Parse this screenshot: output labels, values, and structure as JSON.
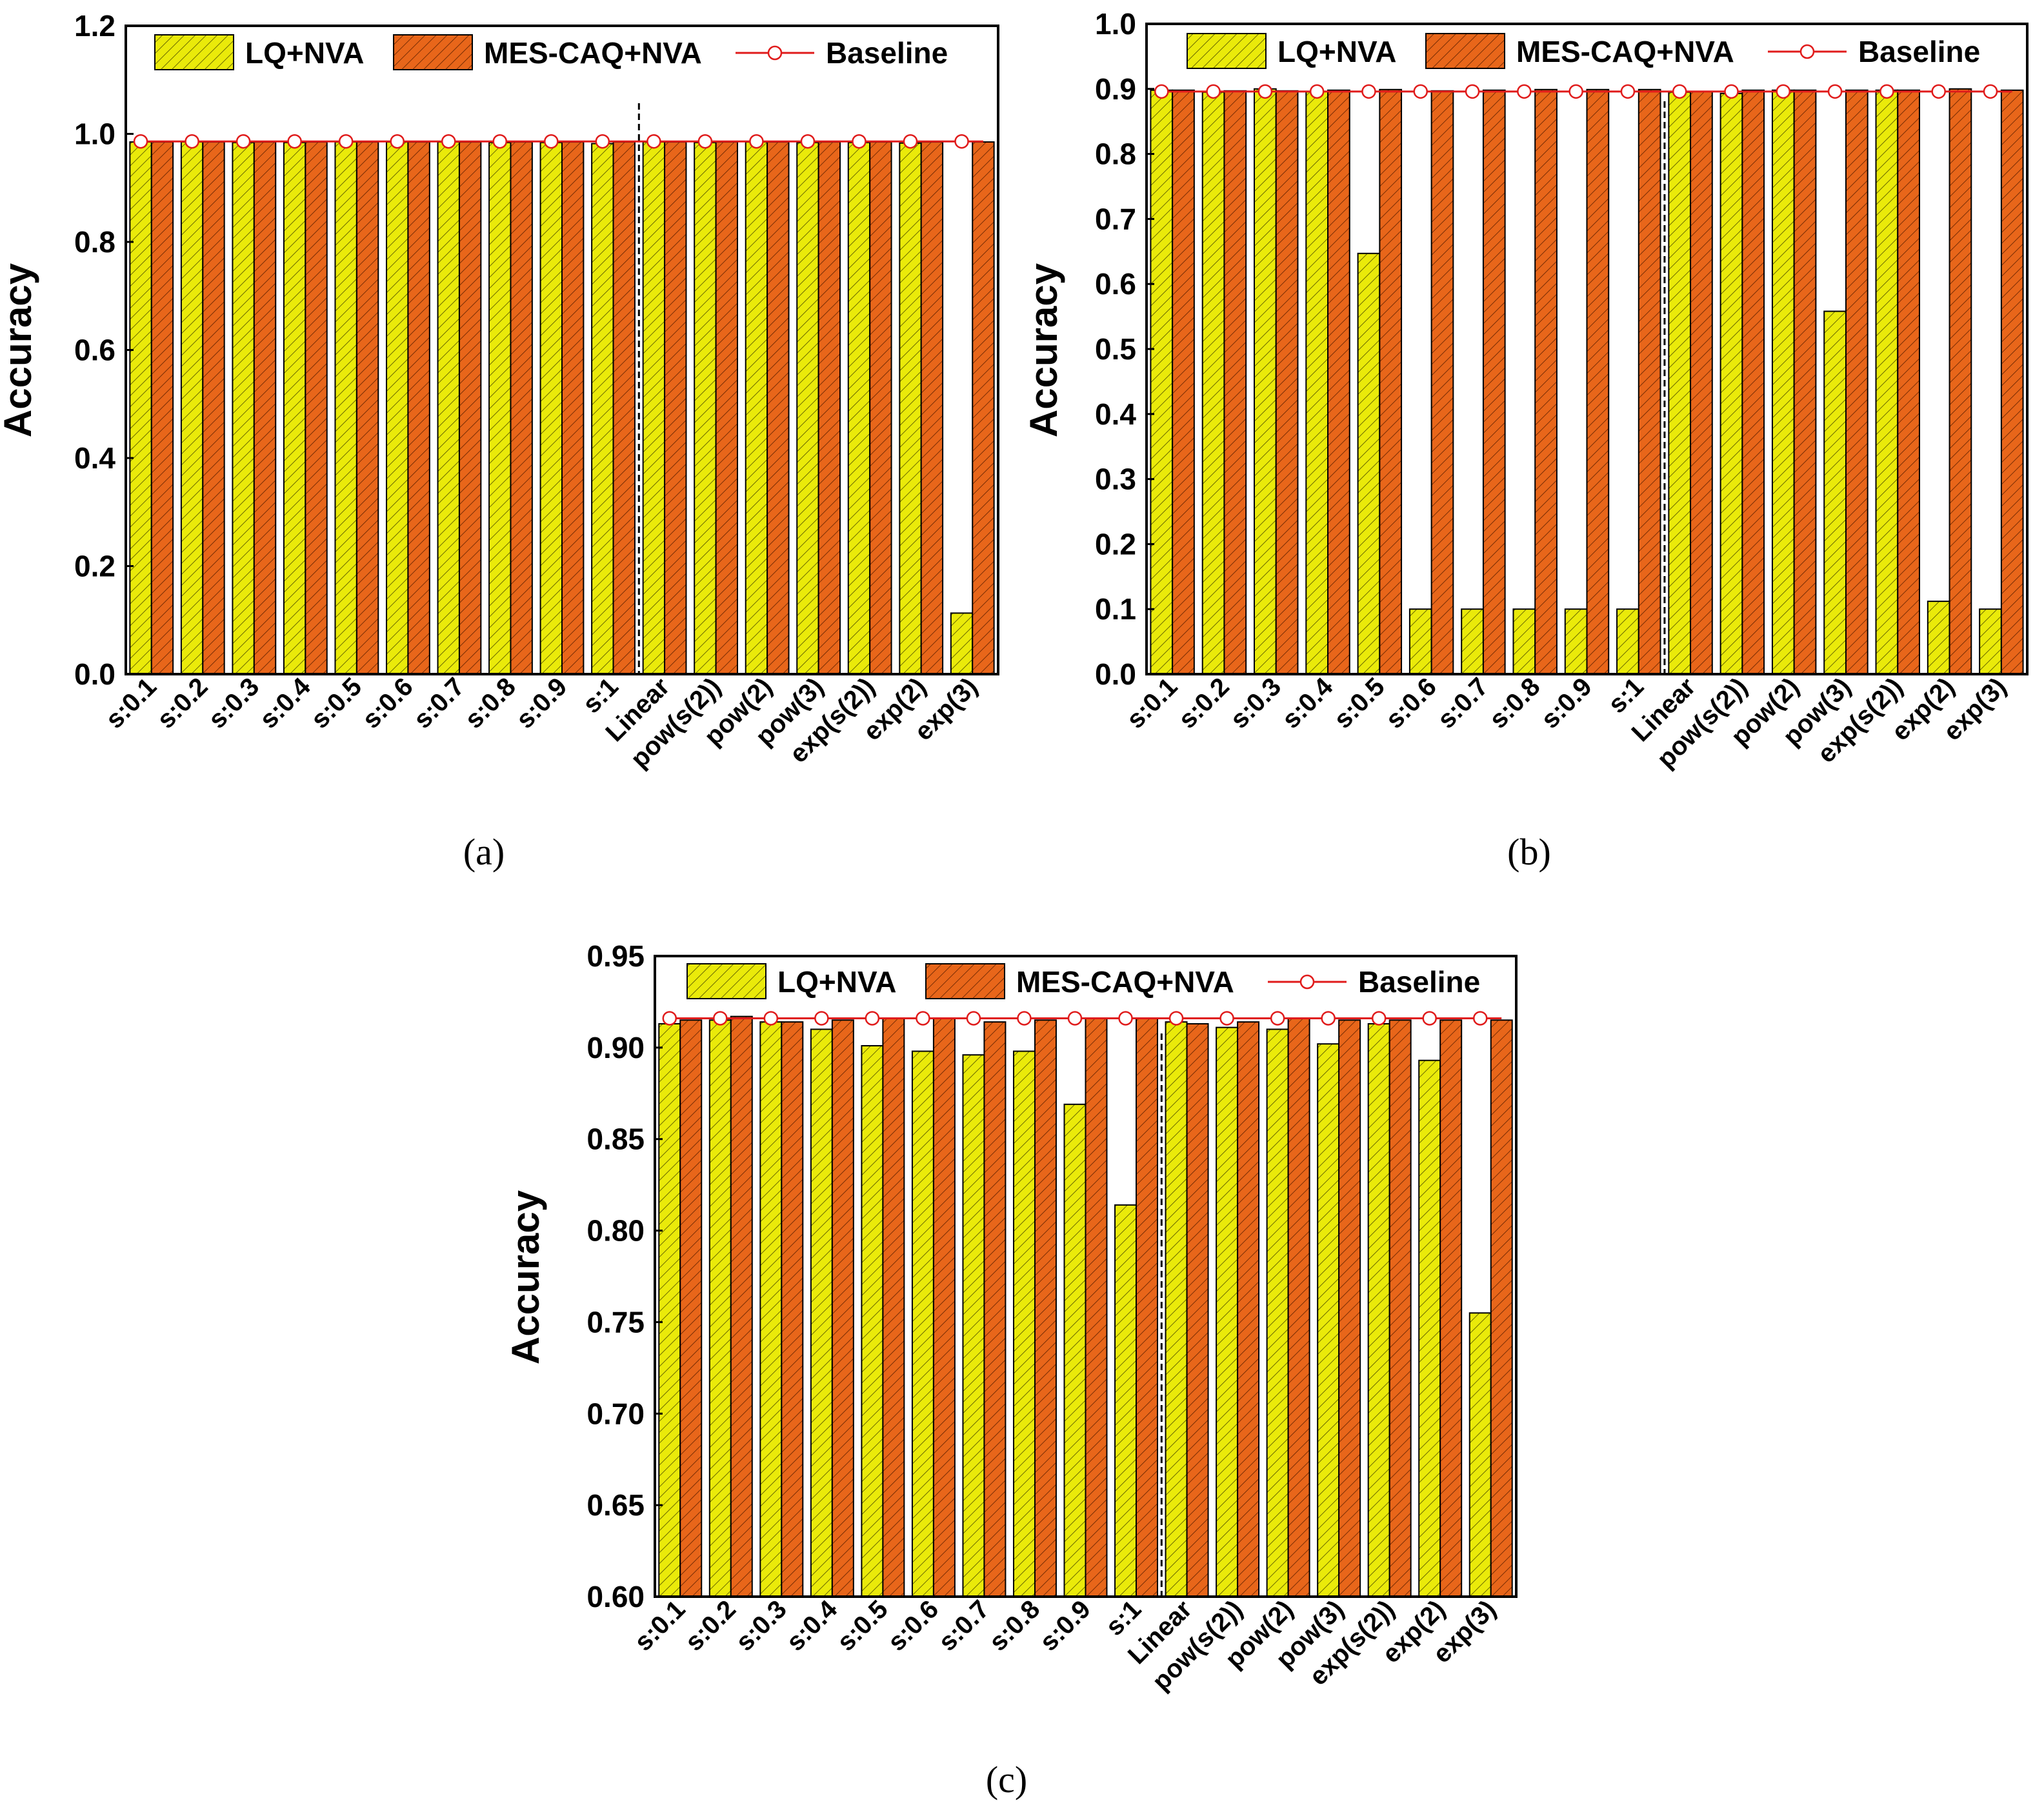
{
  "colors": {
    "lq": "#eaea0a",
    "mes": "#e8661a",
    "baseline": "#e01b1b"
  },
  "chart_data": [
    {
      "id": "a",
      "type": "bar",
      "caption": "(a)",
      "ylabel": "Accuracy",
      "ylim": [
        0.0,
        1.2
      ],
      "yticks": [
        "0.0",
        "0.2",
        "0.4",
        "0.6",
        "0.8",
        "1.0",
        "1.2"
      ],
      "categories": [
        "s:0.1",
        "s:0.2",
        "s:0.3",
        "s:0.4",
        "s:0.5",
        "s:0.6",
        "s:0.7",
        "s:0.8",
        "s:0.9",
        "s:1",
        "Linear",
        "pow(s(2))",
        "pow(2)",
        "pow(3)",
        "exp(s(2))",
        "exp(2)",
        "exp(3)"
      ],
      "divider_after_index": 9,
      "series": [
        {
          "name": "LQ+NVA",
          "values": [
            0.985,
            0.985,
            0.984,
            0.984,
            0.985,
            0.985,
            0.985,
            0.984,
            0.984,
            0.982,
            0.985,
            0.984,
            0.985,
            0.984,
            0.984,
            0.983,
            0.113
          ]
        },
        {
          "name": "MES-CAQ+NVA",
          "values": [
            0.985,
            0.985,
            0.985,
            0.985,
            0.985,
            0.985,
            0.985,
            0.985,
            0.985,
            0.985,
            0.985,
            0.985,
            0.985,
            0.985,
            0.985,
            0.985,
            0.985
          ]
        }
      ],
      "baseline": {
        "name": "Baseline",
        "value": 0.986
      }
    },
    {
      "id": "b",
      "type": "bar",
      "caption": "(b)",
      "ylabel": "Accuracy",
      "ylim": [
        0.0,
        1.0
      ],
      "yticks": [
        "0.0",
        "0.1",
        "0.2",
        "0.3",
        "0.4",
        "0.5",
        "0.6",
        "0.7",
        "0.8",
        "0.9",
        "1.0"
      ],
      "categories": [
        "s:0.1",
        "s:0.2",
        "s:0.3",
        "s:0.4",
        "s:0.5",
        "s:0.6",
        "s:0.7",
        "s:0.8",
        "s:0.9",
        "s:1",
        "Linear",
        "pow(s(2))",
        "pow(2)",
        "pow(3)",
        "exp(s(2))",
        "exp(2)",
        "exp(3)"
      ],
      "divider_after_index": 9,
      "series": [
        {
          "name": "LQ+NVA",
          "values": [
            0.898,
            0.895,
            0.9,
            0.896,
            0.647,
            0.1,
            0.1,
            0.1,
            0.1,
            0.1,
            0.895,
            0.893,
            0.898,
            0.558,
            0.898,
            0.112,
            0.1
          ]
        },
        {
          "name": "MES-CAQ+NVA",
          "values": [
            0.898,
            0.897,
            0.897,
            0.898,
            0.899,
            0.897,
            0.898,
            0.899,
            0.899,
            0.899,
            0.896,
            0.898,
            0.898,
            0.898,
            0.898,
            0.9,
            0.898
          ]
        }
      ],
      "baseline": {
        "name": "Baseline",
        "value": 0.896
      }
    },
    {
      "id": "c",
      "type": "bar",
      "caption": "(c)",
      "ylabel": "Accuracy",
      "ylim": [
        0.6,
        0.95
      ],
      "yticks": [
        "0.60",
        "0.65",
        "0.70",
        "0.75",
        "0.80",
        "0.85",
        "0.90",
        "0.95"
      ],
      "categories": [
        "s:0.1",
        "s:0.2",
        "s:0.3",
        "s:0.4",
        "s:0.5",
        "s:0.6",
        "s:0.7",
        "s:0.8",
        "s:0.9",
        "s:1",
        "Linear",
        "pow(s(2))",
        "pow(2)",
        "pow(3)",
        "exp(s(2))",
        "exp(2)",
        "exp(3)"
      ],
      "divider_after_index": 9,
      "series": [
        {
          "name": "LQ+NVA",
          "values": [
            0.913,
            0.915,
            0.914,
            0.91,
            0.901,
            0.898,
            0.896,
            0.898,
            0.869,
            0.814,
            0.914,
            0.911,
            0.91,
            0.902,
            0.913,
            0.893,
            0.755
          ]
        },
        {
          "name": "MES-CAQ+NVA",
          "values": [
            0.915,
            0.917,
            0.914,
            0.915,
            0.916,
            0.916,
            0.914,
            0.915,
            0.916,
            0.916,
            0.913,
            0.914,
            0.916,
            0.915,
            0.915,
            0.915,
            0.915
          ]
        }
      ],
      "baseline": {
        "name": "Baseline",
        "value": 0.916
      }
    }
  ]
}
